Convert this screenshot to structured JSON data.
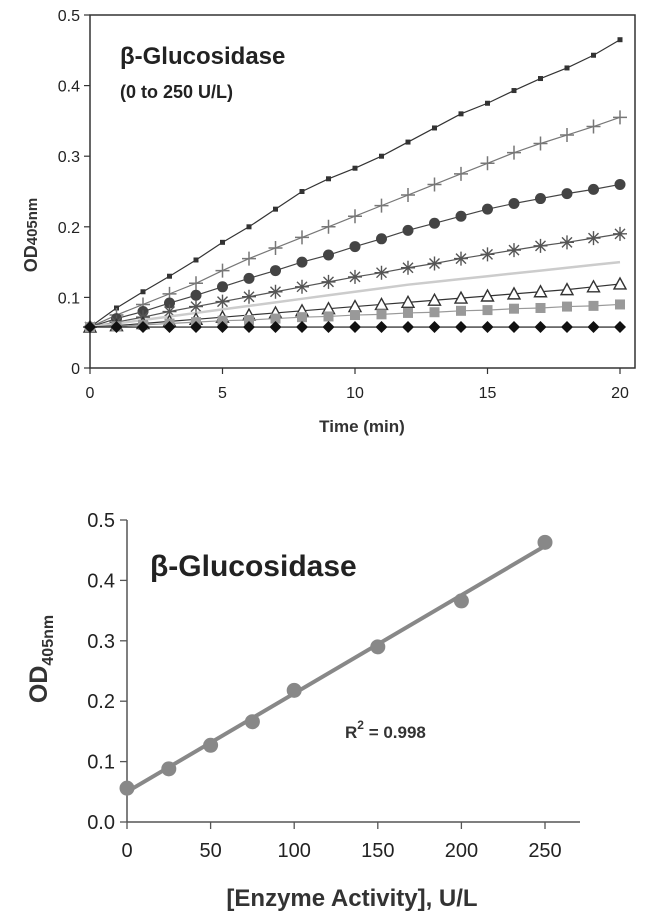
{
  "chart_data": [
    {
      "type": "line",
      "title": "β-Glucosidase",
      "subtitle": "(0 to 250 U/L)",
      "xlabel": "Time (min)",
      "ylabel_main": "OD",
      "ylabel_sub": "405nm",
      "xlim": [
        0,
        20
      ],
      "ylim": [
        0,
        0.5
      ],
      "xticks": [
        "0",
        "5",
        "10",
        "15",
        "20"
      ],
      "yticks": [
        "0",
        "0.1",
        "0.2",
        "0.3",
        "0.4",
        "0.5"
      ],
      "grid": false,
      "legend": "none",
      "x": [
        0,
        1,
        2,
        3,
        4,
        5,
        6,
        7,
        8,
        9,
        10,
        11,
        12,
        13,
        14,
        15,
        16,
        17,
        18,
        19,
        20
      ],
      "series": [
        {
          "marker": "small-square",
          "color": "#333333",
          "values": [
            0.058,
            0.085,
            0.108,
            0.13,
            0.153,
            0.178,
            0.2,
            0.225,
            0.25,
            0.268,
            0.283,
            0.3,
            0.32,
            0.34,
            0.36,
            0.375,
            0.393,
            0.41,
            0.425,
            0.443,
            0.465
          ]
        },
        {
          "marker": "plus",
          "color": "#777777",
          "values": [
            0.058,
            0.075,
            0.09,
            0.105,
            0.12,
            0.138,
            0.155,
            0.17,
            0.185,
            0.2,
            0.215,
            0.23,
            0.245,
            0.26,
            0.275,
            0.29,
            0.305,
            0.318,
            0.33,
            0.342,
            0.355
          ]
        },
        {
          "marker": "circle",
          "color": "#444444",
          "values": [
            0.058,
            0.07,
            0.08,
            0.092,
            0.103,
            0.115,
            0.127,
            0.138,
            0.15,
            0.16,
            0.172,
            0.183,
            0.195,
            0.205,
            0.215,
            0.225,
            0.233,
            0.24,
            0.247,
            0.253,
            0.26
          ]
        },
        {
          "marker": "asterisk",
          "color": "#555555",
          "values": [
            0.058,
            0.065,
            0.072,
            0.08,
            0.087,
            0.094,
            0.101,
            0.108,
            0.115,
            0.122,
            0.129,
            0.135,
            0.142,
            0.148,
            0.155,
            0.161,
            0.167,
            0.173,
            0.178,
            0.184,
            0.19
          ]
        },
        {
          "marker": "none",
          "color": "#cccccc",
          "values": [
            0.058,
            0.063,
            0.068,
            0.073,
            0.078,
            0.083,
            0.088,
            0.093,
            0.098,
            0.103,
            0.108,
            0.113,
            0.118,
            0.122,
            0.126,
            0.13,
            0.134,
            0.138,
            0.142,
            0.146,
            0.15
          ]
        },
        {
          "marker": "triangle",
          "color": "#333333",
          "values": [
            0.058,
            0.06,
            0.063,
            0.066,
            0.069,
            0.072,
            0.075,
            0.078,
            0.081,
            0.084,
            0.087,
            0.09,
            0.093,
            0.096,
            0.099,
            0.102,
            0.105,
            0.108,
            0.111,
            0.115,
            0.119
          ]
        },
        {
          "marker": "square",
          "color": "#999999",
          "values": [
            0.058,
            0.059,
            0.061,
            0.063,
            0.065,
            0.067,
            0.068,
            0.07,
            0.072,
            0.073,
            0.075,
            0.076,
            0.078,
            0.079,
            0.081,
            0.082,
            0.084,
            0.085,
            0.087,
            0.088,
            0.09
          ]
        },
        {
          "marker": "diamond",
          "color": "#111111",
          "values": [
            0.058,
            0.058,
            0.058,
            0.058,
            0.058,
            0.058,
            0.058,
            0.058,
            0.058,
            0.058,
            0.058,
            0.058,
            0.058,
            0.058,
            0.058,
            0.058,
            0.058,
            0.058,
            0.058,
            0.058,
            0.058
          ]
        }
      ]
    },
    {
      "type": "scatter",
      "title": "β-Glucosidase",
      "xlabel": "[Enzyme Activity], U/L",
      "ylabel_main": "OD",
      "ylabel_sub": "405nm",
      "xlim": [
        0,
        250
      ],
      "ylim": [
        0,
        0.5
      ],
      "xticks": [
        "0",
        "50",
        "100",
        "150",
        "200",
        "250"
      ],
      "yticks": [
        "0.0",
        "0.1",
        "0.2",
        "0.3",
        "0.4",
        "0.5"
      ],
      "grid": false,
      "legend": "none",
      "annotation": {
        "r_label": "R",
        "r_sup": "2",
        "r_rest": " = 0.998",
        "x": 150,
        "y": 0.2
      },
      "trendline": {
        "x": [
          0,
          250
        ],
        "y": [
          0.05,
          0.457
        ]
      },
      "marker_color": "#888888",
      "line_color": "#888888",
      "points": {
        "x": [
          0,
          25,
          50,
          75,
          100,
          150,
          200,
          250
        ],
        "y": [
          0.056,
          0.088,
          0.127,
          0.166,
          0.218,
          0.29,
          0.366,
          0.463
        ]
      }
    }
  ]
}
